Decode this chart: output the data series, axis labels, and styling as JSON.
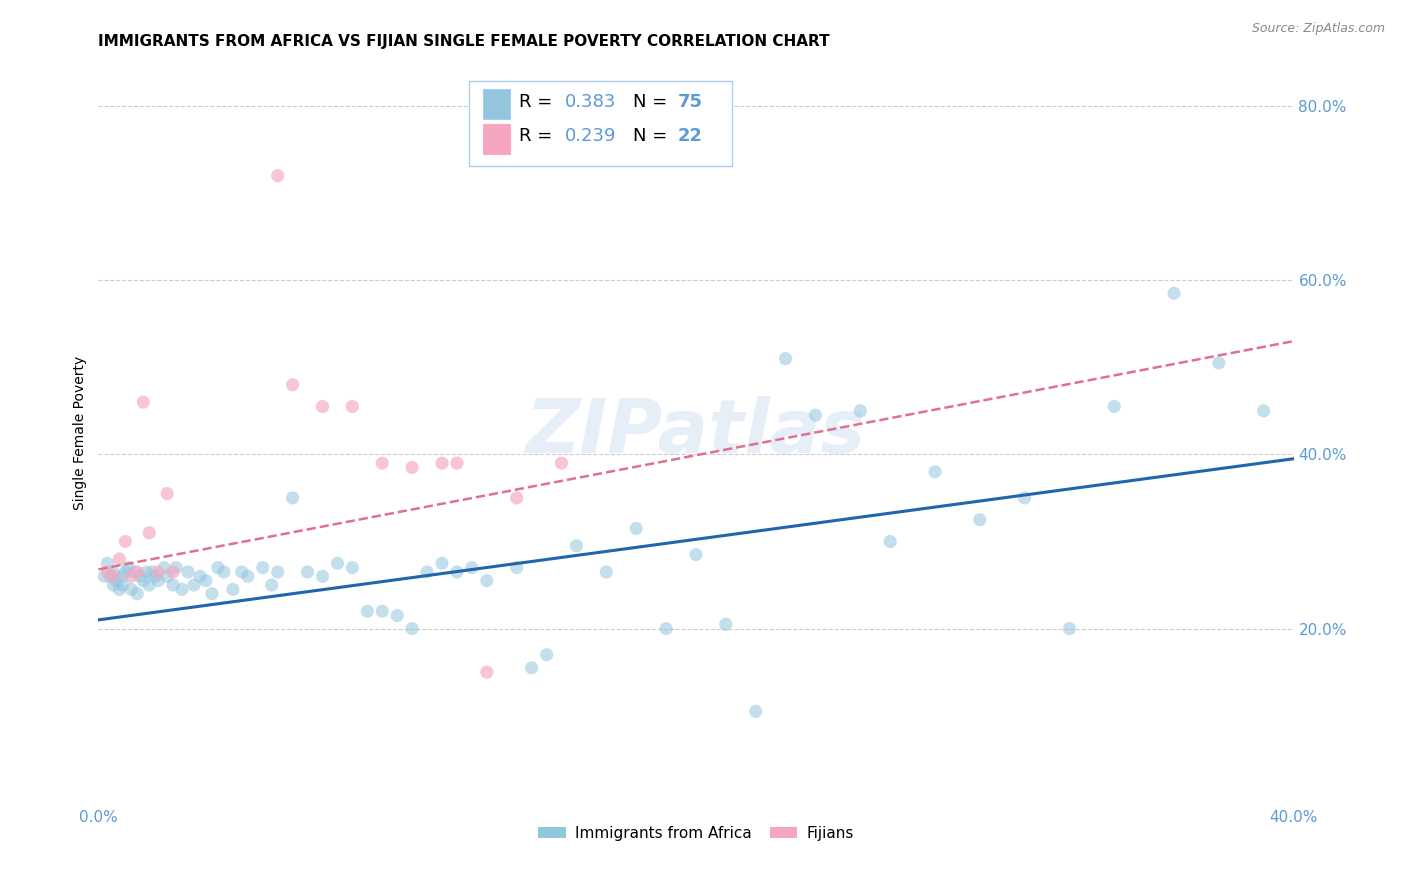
{
  "title": "IMMIGRANTS FROM AFRICA VS FIJIAN SINGLE FEMALE POVERTY CORRELATION CHART",
  "source": "Source: ZipAtlas.com",
  "ylabel": "Single Female Poverty",
  "right_yticks": [
    "20.0%",
    "40.0%",
    "60.0%",
    "80.0%"
  ],
  "right_ytick_vals": [
    0.2,
    0.4,
    0.6,
    0.8
  ],
  "xlim": [
    0.0,
    0.4
  ],
  "ylim": [
    0.0,
    0.85
  ],
  "legend_blue_r": "0.383",
  "legend_blue_n": "75",
  "legend_pink_r": "0.239",
  "legend_pink_n": "22",
  "blue_color": "#92c5de",
  "pink_color": "#f4a6c0",
  "blue_line_color": "#2166ac",
  "pink_line_color": "#e07090",
  "axis_color": "#5b9bd5",
  "watermark": "ZIPatlas",
  "blue_points_x": [
    0.002,
    0.003,
    0.004,
    0.005,
    0.005,
    0.006,
    0.007,
    0.008,
    0.008,
    0.009,
    0.01,
    0.011,
    0.012,
    0.013,
    0.014,
    0.015,
    0.016,
    0.017,
    0.018,
    0.019,
    0.02,
    0.022,
    0.023,
    0.025,
    0.026,
    0.028,
    0.03,
    0.032,
    0.034,
    0.036,
    0.038,
    0.04,
    0.042,
    0.045,
    0.048,
    0.05,
    0.055,
    0.058,
    0.06,
    0.065,
    0.07,
    0.075,
    0.08,
    0.085,
    0.09,
    0.095,
    0.1,
    0.105,
    0.11,
    0.115,
    0.12,
    0.125,
    0.13,
    0.14,
    0.145,
    0.15,
    0.16,
    0.17,
    0.18,
    0.19,
    0.2,
    0.21,
    0.22,
    0.23,
    0.24,
    0.255,
    0.265,
    0.28,
    0.295,
    0.31,
    0.325,
    0.34,
    0.36,
    0.375,
    0.39
  ],
  "blue_points_y": [
    0.26,
    0.275,
    0.26,
    0.25,
    0.265,
    0.255,
    0.245,
    0.26,
    0.25,
    0.265,
    0.27,
    0.245,
    0.265,
    0.24,
    0.26,
    0.255,
    0.265,
    0.25,
    0.265,
    0.26,
    0.255,
    0.27,
    0.26,
    0.25,
    0.27,
    0.245,
    0.265,
    0.25,
    0.26,
    0.255,
    0.24,
    0.27,
    0.265,
    0.245,
    0.265,
    0.26,
    0.27,
    0.25,
    0.265,
    0.35,
    0.265,
    0.26,
    0.275,
    0.27,
    0.22,
    0.22,
    0.215,
    0.2,
    0.265,
    0.275,
    0.265,
    0.27,
    0.255,
    0.27,
    0.155,
    0.17,
    0.295,
    0.265,
    0.315,
    0.2,
    0.285,
    0.205,
    0.105,
    0.51,
    0.445,
    0.45,
    0.3,
    0.38,
    0.325,
    0.35,
    0.2,
    0.455,
    0.585,
    0.505,
    0.45
  ],
  "pink_points_x": [
    0.003,
    0.005,
    0.007,
    0.009,
    0.011,
    0.013,
    0.015,
    0.017,
    0.02,
    0.023,
    0.025,
    0.06,
    0.065,
    0.075,
    0.085,
    0.095,
    0.105,
    0.115,
    0.12,
    0.13,
    0.14,
    0.155
  ],
  "pink_points_y": [
    0.265,
    0.26,
    0.28,
    0.3,
    0.26,
    0.265,
    0.46,
    0.31,
    0.265,
    0.355,
    0.265,
    0.72,
    0.48,
    0.455,
    0.455,
    0.39,
    0.385,
    0.39,
    0.39,
    0.15,
    0.35,
    0.39
  ],
  "blue_line_x": [
    0.0,
    0.4
  ],
  "blue_line_y": [
    0.21,
    0.395
  ],
  "pink_line_x": [
    0.0,
    0.4
  ],
  "pink_line_y": [
    0.268,
    0.53
  ],
  "grid_color": "#cccccc",
  "grid_yticks": [
    0.2,
    0.4,
    0.6,
    0.8
  ],
  "background_color": "#ffffff",
  "title_fontsize": 11,
  "source_fontsize": 9,
  "tick_fontsize": 11,
  "legend_fontsize": 13
}
